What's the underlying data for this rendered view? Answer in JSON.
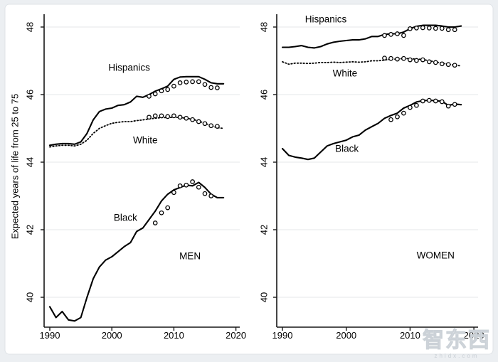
{
  "figure": {
    "outer_background": "#eceff2",
    "inner_background": "#ffffff",
    "inner_border": "#dfe3e7",
    "grid_color": "#e5e7e9",
    "axis_color": "#161616",
    "line_color": "#000000",
    "text_color": "#000000"
  },
  "watermark": {
    "text": "智东西",
    "sub": "zhidx.com"
  },
  "chart_data": [
    {
      "panel_label": "MEN",
      "type": "line",
      "title": "",
      "xlabel": "",
      "ylabel": "Expected years of life from 25 to 75",
      "xticks": [
        1990,
        2000,
        2010,
        2020
      ],
      "yticks": [
        40,
        42,
        44,
        46,
        48
      ],
      "xlim": [
        1989,
        2020.7
      ],
      "ylim": [
        39.1,
        48.4
      ],
      "grid": "horizontal",
      "legend_position": "inline-labels",
      "annotations": [
        {
          "text": "Hispanics",
          "x": 2002.8,
          "y": 46.8
        },
        {
          "text": "White",
          "x": 2005.4,
          "y": 44.65
        },
        {
          "text": "Black",
          "x": 2002.2,
          "y": 42.36
        },
        {
          "text": "MEN",
          "x": 2012.6,
          "y": 41.22
        }
      ],
      "series": [
        {
          "name": "Hispanics",
          "measure": "line",
          "style": "solid",
          "x": [
            1990,
            1991,
            1992,
            1993,
            1994,
            1995,
            1996,
            1997,
            1998,
            1999,
            2000,
            2001,
            2002,
            2003,
            2004,
            2005,
            2006,
            2007,
            2008,
            2009,
            2010,
            2011,
            2012,
            2013,
            2014,
            2015,
            2016,
            2017,
            2018
          ],
          "values": [
            44.5,
            44.53,
            44.55,
            44.55,
            44.53,
            44.6,
            44.85,
            45.25,
            45.5,
            45.57,
            45.6,
            45.68,
            45.7,
            45.78,
            45.95,
            45.92,
            46.0,
            46.1,
            46.17,
            46.25,
            46.45,
            46.52,
            46.53,
            46.53,
            46.53,
            46.45,
            46.35,
            46.32,
            46.32
          ]
        },
        {
          "name": "Hispanics",
          "measure": "markers",
          "style": "circles",
          "x": [
            2006,
            2007,
            2008,
            2009,
            2010,
            2011,
            2012,
            2013,
            2014,
            2015,
            2016,
            2017
          ],
          "values": [
            45.95,
            46.02,
            46.11,
            46.15,
            46.25,
            46.35,
            46.37,
            46.38,
            46.38,
            46.3,
            46.21,
            46.2
          ]
        },
        {
          "name": "White",
          "measure": "line",
          "style": "dotted",
          "x": [
            1990,
            1991,
            1992,
            1993,
            1994,
            1995,
            1996,
            1997,
            1998,
            1999,
            2000,
            2001,
            2002,
            2003,
            2004,
            2005,
            2006,
            2007,
            2008,
            2009,
            2010,
            2011,
            2012,
            2013,
            2014,
            2015,
            2016,
            2017,
            2018
          ],
          "values": [
            44.45,
            44.48,
            44.5,
            44.5,
            44.48,
            44.53,
            44.65,
            44.85,
            45.0,
            45.08,
            45.15,
            45.18,
            45.2,
            45.2,
            45.23,
            45.25,
            45.28,
            45.3,
            45.32,
            45.32,
            45.33,
            45.32,
            45.3,
            45.27,
            45.22,
            45.15,
            45.08,
            45.02,
            45.0
          ]
        },
        {
          "name": "White",
          "measure": "markers",
          "style": "circles",
          "x": [
            2006,
            2007,
            2008,
            2009,
            2010,
            2011,
            2012,
            2013,
            2014,
            2015,
            2016,
            2017
          ],
          "values": [
            45.33,
            45.37,
            45.37,
            45.35,
            45.37,
            45.33,
            45.3,
            45.26,
            45.2,
            45.14,
            45.08,
            45.06
          ]
        },
        {
          "name": "Black",
          "measure": "line",
          "style": "solid",
          "x": [
            1990,
            1991,
            1992,
            1993,
            1994,
            1995,
            1996,
            1997,
            1998,
            1999,
            2000,
            2001,
            2002,
            2003,
            2004,
            2005,
            2006,
            2007,
            2008,
            2009,
            2010,
            2011,
            2012,
            2013,
            2014,
            2015,
            2016,
            2017,
            2018
          ],
          "values": [
            39.72,
            39.4,
            39.58,
            39.33,
            39.3,
            39.4,
            40.0,
            40.55,
            40.9,
            41.1,
            41.2,
            41.35,
            41.5,
            41.62,
            41.95,
            42.05,
            42.3,
            42.55,
            42.85,
            43.05,
            43.18,
            43.25,
            43.32,
            43.3,
            43.4,
            43.25,
            43.05,
            42.95,
            42.95
          ]
        },
        {
          "name": "Black",
          "measure": "markers",
          "style": "circles",
          "x": [
            2007,
            2008,
            2009,
            2010,
            2011,
            2012,
            2013,
            2014,
            2015,
            2016
          ],
          "values": [
            42.2,
            42.5,
            42.65,
            43.1,
            43.3,
            43.32,
            43.42,
            43.26,
            43.07,
            43.0
          ]
        }
      ]
    },
    {
      "panel_label": "WOMEN",
      "type": "line",
      "title": "",
      "xlabel": "",
      "ylabel": "",
      "xticks": [
        1990,
        2000,
        2010,
        2020
      ],
      "yticks": [
        40,
        42,
        44,
        46,
        48
      ],
      "xlim": [
        1989,
        2020.7
      ],
      "ylim": [
        39.1,
        48.4
      ],
      "grid": "horizontal",
      "legend_position": "inline-labels",
      "annotations": [
        {
          "text": "Hispanics",
          "x": 1996.8,
          "y": 48.23
        },
        {
          "text": "White",
          "x": 1999.8,
          "y": 46.63
        },
        {
          "text": "Black",
          "x": 2000.1,
          "y": 44.4
        },
        {
          "text": "WOMEN",
          "x": 2014.0,
          "y": 41.24
        }
      ],
      "series": [
        {
          "name": "Hispanics",
          "measure": "line",
          "style": "solid",
          "x": [
            1990,
            1991,
            1992,
            1993,
            1994,
            1995,
            1996,
            1997,
            1998,
            1999,
            2000,
            2001,
            2002,
            2003,
            2004,
            2005,
            2006,
            2007,
            2008,
            2009,
            2010,
            2011,
            2012,
            2013,
            2014,
            2015,
            2016,
            2017,
            2018
          ],
          "values": [
            47.4,
            47.4,
            47.42,
            47.45,
            47.4,
            47.38,
            47.42,
            47.5,
            47.55,
            47.58,
            47.6,
            47.62,
            47.62,
            47.65,
            47.72,
            47.72,
            47.78,
            47.8,
            47.8,
            47.85,
            47.95,
            48.02,
            48.05,
            48.05,
            48.05,
            48.03,
            48.0,
            48.0,
            48.03
          ]
        },
        {
          "name": "Hispanics",
          "measure": "markers",
          "style": "circles",
          "x": [
            2006,
            2007,
            2008,
            2009,
            2010,
            2011,
            2012,
            2013,
            2014,
            2015,
            2016,
            2017
          ],
          "values": [
            47.75,
            47.78,
            47.8,
            47.75,
            47.95,
            47.97,
            47.98,
            47.97,
            47.96,
            47.96,
            47.92,
            47.92
          ]
        },
        {
          "name": "White",
          "measure": "line",
          "style": "dotted",
          "x": [
            1990,
            1991,
            1992,
            1993,
            1994,
            1995,
            1996,
            1997,
            1998,
            1999,
            2000,
            2001,
            2002,
            2003,
            2004,
            2005,
            2006,
            2007,
            2008,
            2009,
            2010,
            2011,
            2012,
            2013,
            2014,
            2015,
            2016,
            2017,
            2018
          ],
          "values": [
            46.97,
            46.9,
            46.93,
            46.93,
            46.92,
            46.93,
            46.95,
            46.95,
            46.96,
            46.95,
            46.96,
            46.97,
            46.96,
            46.97,
            47.0,
            47.0,
            47.02,
            47.05,
            47.05,
            47.07,
            47.06,
            47.05,
            47.04,
            47.0,
            46.97,
            46.93,
            46.9,
            46.87,
            46.85
          ]
        },
        {
          "name": "White",
          "measure": "markers",
          "style": "circles",
          "x": [
            2006,
            2007,
            2008,
            2009,
            2010,
            2011,
            2012,
            2013,
            2014,
            2015,
            2016,
            2017
          ],
          "values": [
            47.08,
            47.07,
            47.05,
            47.07,
            47.03,
            47.01,
            47.03,
            46.97,
            46.95,
            46.91,
            46.89,
            46.87
          ]
        },
        {
          "name": "Black",
          "measure": "line",
          "style": "solid",
          "x": [
            1990,
            1991,
            1992,
            1993,
            1994,
            1995,
            1996,
            1997,
            1998,
            1999,
            2000,
            2001,
            2002,
            2003,
            2004,
            2005,
            2006,
            2007,
            2008,
            2009,
            2010,
            2011,
            2012,
            2013,
            2014,
            2015,
            2016,
            2017,
            2018
          ],
          "values": [
            44.4,
            44.2,
            44.15,
            44.12,
            44.08,
            44.12,
            44.3,
            44.48,
            44.55,
            44.6,
            44.65,
            44.75,
            44.8,
            44.95,
            45.05,
            45.15,
            45.3,
            45.38,
            45.45,
            45.6,
            45.68,
            45.78,
            45.82,
            45.83,
            45.82,
            45.8,
            45.68,
            45.72,
            45.7
          ]
        },
        {
          "name": "Black",
          "measure": "markers",
          "style": "circles",
          "x": [
            2007,
            2008,
            2009,
            2010,
            2011,
            2012,
            2013,
            2014,
            2015,
            2016,
            2017
          ],
          "values": [
            45.26,
            45.34,
            45.45,
            45.62,
            45.68,
            45.81,
            45.83,
            45.81,
            45.79,
            45.66,
            45.71
          ]
        }
      ]
    }
  ]
}
